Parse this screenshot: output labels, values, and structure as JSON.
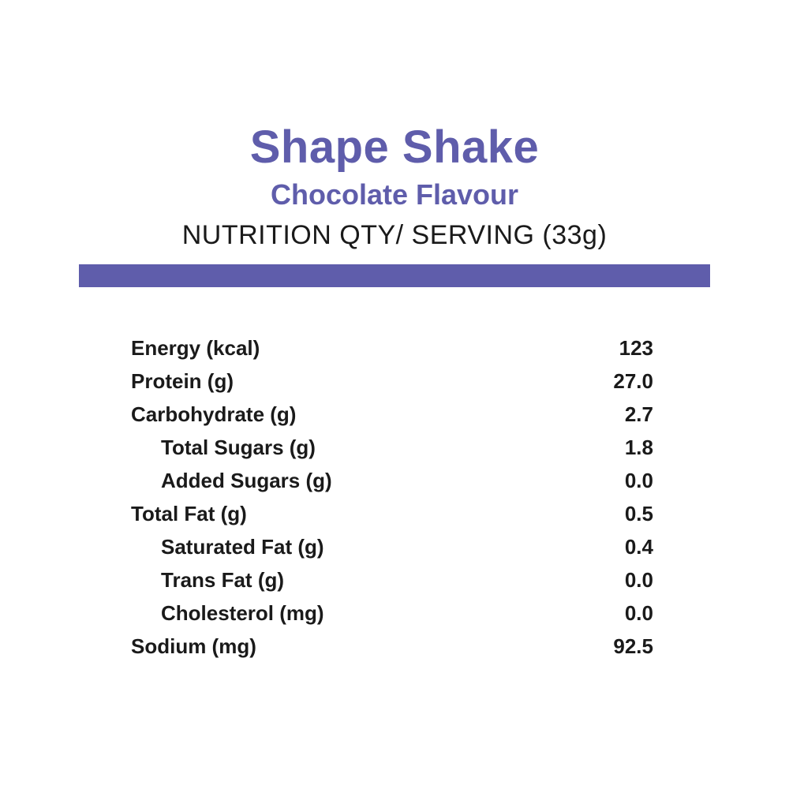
{
  "title": "Shape Shake",
  "subtitle": "Chocolate Flavour",
  "serving_header": "NUTRITION QTY/ SERVING (33g)",
  "accent_color": "#5f5dab",
  "nutrition": [
    {
      "label": "Energy (kcal)",
      "value": "123",
      "indent": false
    },
    {
      "label": "Protein (g)",
      "value": "27.0",
      "indent": false
    },
    {
      "label": "Carbohydrate (g)",
      "value": "2.7",
      "indent": false
    },
    {
      "label": "Total Sugars (g)",
      "value": "1.8",
      "indent": true
    },
    {
      "label": "Added Sugars (g)",
      "value": "0.0",
      "indent": true
    },
    {
      "label": "Total Fat (g)",
      "value": "0.5",
      "indent": false
    },
    {
      "label": "Saturated Fat (g)",
      "value": "0.4",
      "indent": true
    },
    {
      "label": "Trans Fat (g)",
      "value": "0.0",
      "indent": true
    },
    {
      "label": "Cholesterol (mg)",
      "value": "0.0",
      "indent": true
    },
    {
      "label": "Sodium (mg)",
      "value": "92.5",
      "indent": false
    }
  ]
}
